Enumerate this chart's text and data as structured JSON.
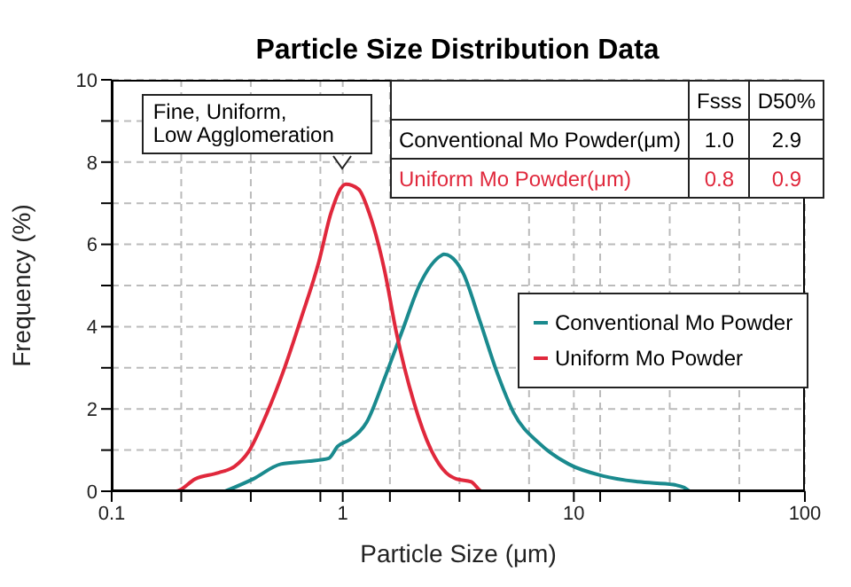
{
  "chart_data": {
    "type": "line",
    "title": "Particle Size Distribution Data",
    "xlabel": "Particle Size (μm)",
    "ylabel": "Frequency (%)",
    "log": "x",
    "xlim": [
      0.1,
      100
    ],
    "ylim": [
      0,
      10
    ],
    "xticks": [
      0.1,
      {
        "value": 0.2,
        "label": null
      },
      {
        "value": 0.4,
        "label": null
      },
      {
        "value": 0.8,
        "label": null
      },
      1,
      {
        "value": 1.6,
        "label": null
      },
      {
        "value": 3.2,
        "label": null
      },
      {
        "value": 6.4,
        "label": null
      },
      10,
      {
        "value": 13,
        "label": null
      },
      {
        "value": 26,
        "label": null
      },
      {
        "value": 52,
        "label": null
      },
      100
    ],
    "yticks": [
      0,
      {
        "value": 1,
        "label": null
      },
      2,
      {
        "value": 3,
        "label": null
      },
      4,
      {
        "value": 5,
        "label": null
      },
      6,
      {
        "value": 7,
        "label": null
      },
      8,
      {
        "value": 9,
        "label": null
      },
      10
    ],
    "grid": true,
    "legend": "right",
    "marker": "none",
    "line_style": "solid",
    "series": [
      {
        "name": "Conventional Mo Powder",
        "color": "#1a8a8e",
        "x": [
          0.31,
          0.41,
          0.54,
          0.71,
          0.87,
          0.95,
          1.07,
          1.27,
          1.52,
          1.81,
          2.16,
          2.67,
          2.74,
          3.3,
          3.9,
          4.65,
          5.5,
          7.1,
          9.5,
          13.4,
          19,
          27,
          30,
          31.7
        ],
        "values": [
          0,
          0.3,
          0.66,
          0.73,
          0.8,
          1.09,
          1.25,
          1.68,
          2.76,
          3.9,
          5.04,
          5.73,
          5.76,
          5.33,
          4.18,
          2.89,
          1.9,
          1.16,
          0.66,
          0.37,
          0.23,
          0.16,
          0.09,
          0
        ]
      },
      {
        "name": "Uniform Mo Powder",
        "color": "#e0283c",
        "x": [
          0.1,
          0.19,
          0.23,
          0.29,
          0.34,
          0.39,
          0.47,
          0.56,
          0.66,
          0.79,
          0.89,
          1.03,
          1.17,
          1.3,
          1.52,
          1.7,
          2.03,
          2.4,
          2.8,
          3.1,
          3.6,
          4.0,
          72
        ],
        "values": [
          0,
          0,
          0.3,
          0.45,
          0.6,
          0.95,
          1.9,
          3.0,
          4.2,
          5.6,
          6.77,
          7.46,
          7.34,
          6.77,
          5.34,
          3.9,
          2.17,
          1.03,
          0.45,
          0.3,
          0.23,
          0,
          0
        ]
      }
    ],
    "annotations": [
      {
        "text": "Fine, Uniform,\nLow Agglomeration",
        "x": 1,
        "y": 7.5
      },
      "Fsss",
      "D50%",
      "Conventional Mo Powder(μm)",
      "1.0",
      "2.9",
      "Uniform Mo Powder(μm)",
      "0.8",
      "0.9"
    ]
  }
}
